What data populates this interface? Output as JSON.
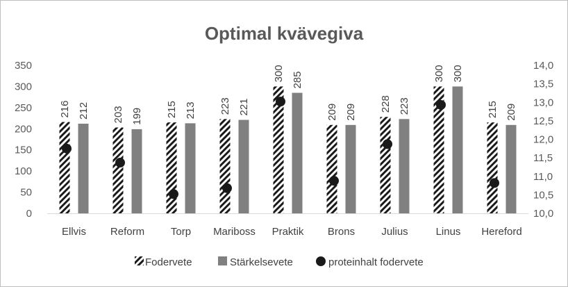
{
  "chart_data": {
    "type": "bar",
    "title": "Optimal kvävegiva",
    "categories": [
      "Ellvis",
      "Reform",
      "Torp",
      "Mariboss",
      "Praktik",
      "Brons",
      "Julius",
      "Linus",
      "Hereford"
    ],
    "series": [
      {
        "name": "Fodervete",
        "type": "bar",
        "axis": "left",
        "pattern": "diagonal-hatch",
        "values": [
          216,
          203,
          215,
          223,
          300,
          209,
          228,
          300,
          215
        ]
      },
      {
        "name": "Stärkelsevete",
        "type": "bar",
        "axis": "left",
        "color": "#808080",
        "values": [
          212,
          199,
          213,
          221,
          285,
          209,
          223,
          300,
          209
        ]
      },
      {
        "name": "proteinhalt fodervete",
        "type": "scatter",
        "axis": "right",
        "color": "#1a1a1a",
        "values": [
          11.75,
          11.37,
          10.52,
          10.68,
          13.02,
          10.88,
          11.87,
          12.93,
          10.82
        ]
      }
    ],
    "left_axis": {
      "ylim": [
        0,
        350
      ],
      "ticks": [
        "0",
        "50",
        "100",
        "150",
        "200",
        "250",
        "300",
        "350"
      ]
    },
    "right_axis": {
      "ylim": [
        10.0,
        14.0
      ],
      "ticks": [
        "10,0",
        "10,5",
        "11,0",
        "11,5",
        "12,0",
        "12,5",
        "13,0",
        "13,5",
        "14,0"
      ]
    },
    "grid": false,
    "legend_position": "bottom",
    "data_labels": true
  }
}
